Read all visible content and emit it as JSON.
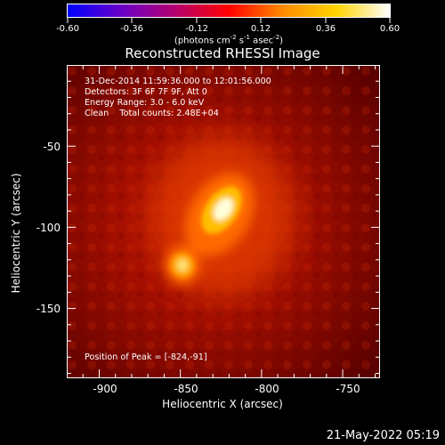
{
  "colorbar": {
    "ticks": [
      "-0.60",
      "-0.36",
      "-0.12",
      "0.12",
      "0.36",
      "0.60"
    ],
    "units_text": "(photons cm",
    "units_exp1": "-2",
    "units_mid1": " s",
    "units_exp2": "-1",
    "units_mid2": " asec",
    "units_exp3": "-2",
    "units_end": ")",
    "range": [
      -0.6,
      0.6
    ],
    "colors": [
      "#0000ff",
      "#6a00c8",
      "#b4006e",
      "#ff0000",
      "#ff8a00",
      "#ffd400",
      "#ffffff"
    ]
  },
  "title": "Reconstructed RHESSI Image",
  "info": {
    "line1": "31-Dec-2014 11:59:36.000 to 12:01:56.000",
    "line2": "Detectors: 3F 6F 7F 9F, Att 0",
    "line3": "Energy Range: 3.0 - 6.0 keV",
    "line4": "Clean    Total counts: 2.48E+04",
    "peak": "Position of Peak = [-824,-91]"
  },
  "axes": {
    "xlabel": "Heliocentric X (arcsec)",
    "ylabel": "Heliocentric Y (arcsec)",
    "xticks": [
      "-900",
      "-850",
      "-800",
      "-750"
    ],
    "yticks": [
      "-50",
      "-100",
      "-150"
    ],
    "xlim": [
      -920,
      -727
    ],
    "ylim": [
      -193,
      0
    ]
  },
  "timestamp": "21-May-2022 05:19",
  "image_data": {
    "sources": [
      {
        "x": -824,
        "y": -91,
        "peak": 1.0
      },
      {
        "x": -852,
        "y": -123,
        "peak": 0.7
      }
    ]
  }
}
